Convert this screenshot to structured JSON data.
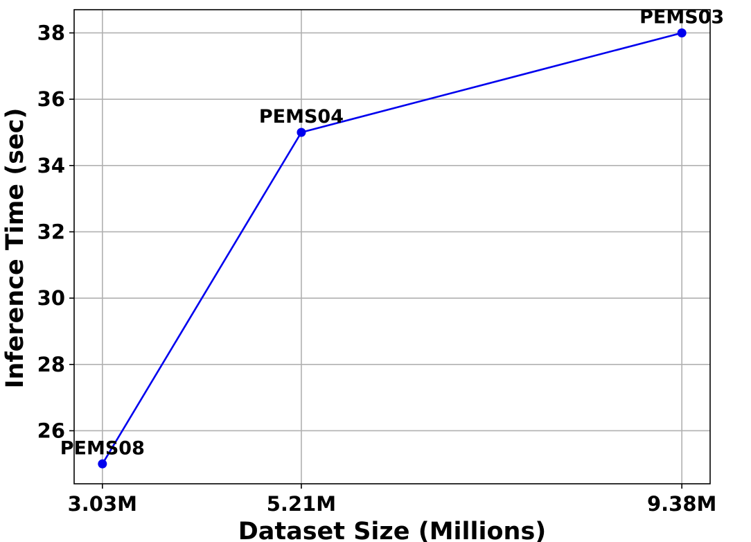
{
  "chart_data": {
    "type": "line",
    "title": "",
    "xlabel": "Dataset Size (Millions)",
    "ylabel": "Inference Time (sec)",
    "x": [
      3.03,
      5.21,
      9.38
    ],
    "x_tick_labels": [
      "3.03M",
      "5.21M",
      "9.38M"
    ],
    "y_ticks": [
      26,
      28,
      30,
      32,
      34,
      36,
      38
    ],
    "xlim": [
      2.72,
      9.69
    ],
    "ylim": [
      24.4,
      38.7
    ],
    "grid": true,
    "series": [
      {
        "values": [
          25,
          35,
          38
        ],
        "point_labels": [
          "PEMS08",
          "PEMS04",
          "PEMS03"
        ],
        "color": "#0000ee",
        "marker": "circle"
      }
    ]
  }
}
